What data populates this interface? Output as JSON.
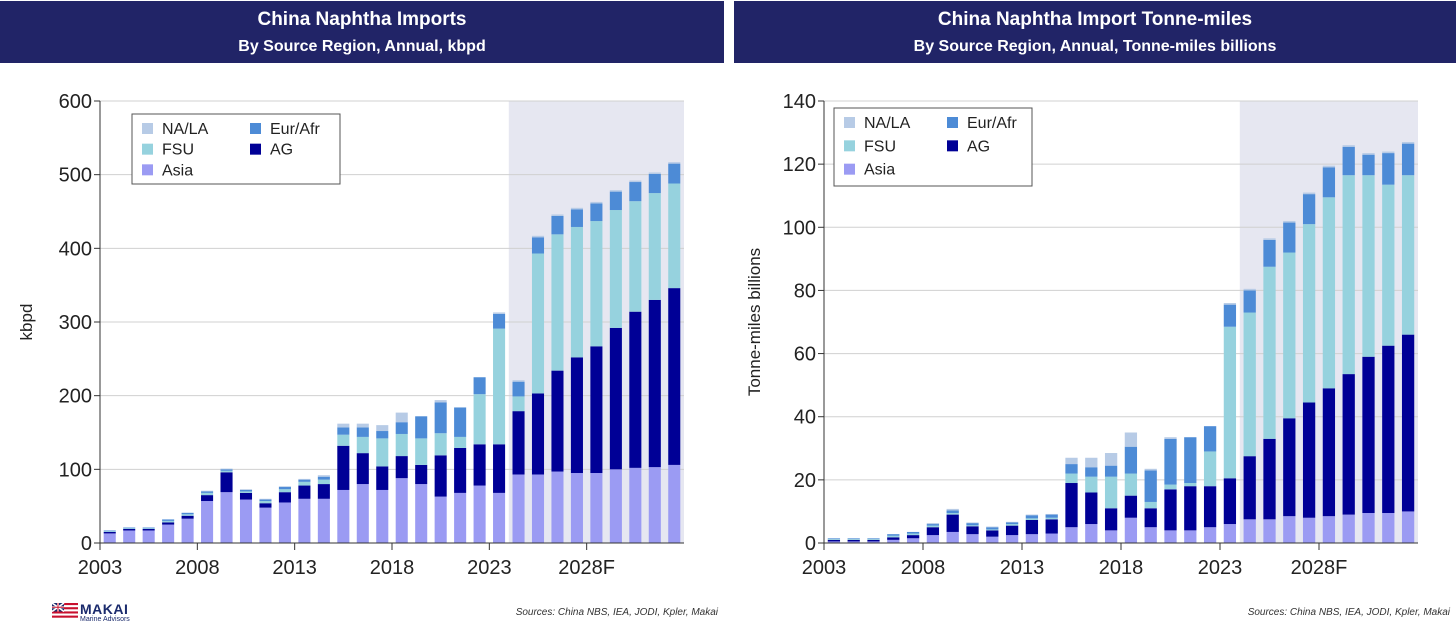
{
  "colors": {
    "banner": "#212467",
    "forecast_shade": "#e6e7f1",
    "Asia": "#9b9bf3",
    "AG": "#000096",
    "FSU": "#96d2de",
    "Eur/Afr": "#4d8bd6",
    "NA/LA": "#b7cbe6"
  },
  "logo": {
    "name": "MAKAI",
    "sub": "Marine Advisors"
  },
  "chart_data": [
    {
      "type": "bar",
      "stacked": true,
      "title": "China Naphtha Imports",
      "subtitle": "By Source Region, Annual, kbpd",
      "ylabel": "kbpd",
      "ylim": [
        0,
        600
      ],
      "yticks": [
        0,
        100,
        200,
        300,
        400,
        500,
        600
      ],
      "x_tick_labels": [
        "2003",
        "2008",
        "2013",
        "2018",
        "2023",
        "2028F"
      ],
      "x": [
        2003,
        2004,
        2005,
        2006,
        2007,
        2008,
        2009,
        2010,
        2011,
        2012,
        2013,
        2014,
        2015,
        2016,
        2017,
        2018,
        2019,
        2020,
        2021,
        2022,
        2023,
        2024,
        2025,
        2026,
        2027,
        2028,
        2029,
        2030,
        2031,
        2032
      ],
      "forecast_start": 2024,
      "grid": true,
      "legend": "top-left",
      "series": [
        {
          "name": "Asia",
          "values": [
            13,
            17,
            17,
            25,
            33,
            57,
            69,
            59,
            48,
            55,
            60,
            60,
            72,
            80,
            72,
            88,
            80,
            63,
            68,
            78,
            68,
            93,
            93,
            97,
            95,
            95,
            100,
            102,
            103,
            106
          ]
        },
        {
          "name": "AG",
          "values": [
            2,
            2,
            2,
            3,
            4,
            8,
            27,
            9,
            6,
            14,
            18,
            20,
            60,
            42,
            32,
            30,
            26,
            56,
            61,
            56,
            66,
            86,
            110,
            137,
            157,
            172,
            192,
            212,
            227,
            240
          ]
        },
        {
          "name": "FSU",
          "values": [
            1,
            1,
            1,
            2,
            2,
            3,
            2,
            2,
            3,
            4,
            5,
            6,
            15,
            22,
            38,
            30,
            36,
            30,
            15,
            68,
            157,
            20,
            190,
            185,
            177,
            170,
            160,
            150,
            145,
            142
          ]
        },
        {
          "name": "Eur/Afr",
          "values": [
            1,
            1,
            1,
            2,
            2,
            2,
            2,
            2,
            2,
            3,
            3,
            4,
            10,
            13,
            10,
            16,
            30,
            42,
            40,
            23,
            20,
            20,
            22,
            25,
            24,
            24,
            25,
            26,
            26,
            27
          ]
        },
        {
          "name": "NA/LA",
          "values": [
            0,
            0,
            0,
            0,
            0,
            1,
            1,
            1,
            1,
            1,
            1,
            2,
            5,
            5,
            8,
            13,
            0,
            3,
            0,
            0,
            2,
            2,
            2,
            2,
            2,
            2,
            2,
            2,
            2,
            2
          ]
        }
      ],
      "source": "Sources: China NBS, IEA, JODI, Kpler, Makai"
    },
    {
      "type": "bar",
      "stacked": true,
      "title": "China Naphtha Import Tonne-miles",
      "subtitle": "By Source Region, Annual, Tonne-miles billions",
      "ylabel": "Tonne-miles billions",
      "ylim": [
        0,
        140
      ],
      "yticks": [
        0,
        20,
        40,
        60,
        80,
        100,
        120,
        140
      ],
      "x_tick_labels": [
        "2003",
        "2008",
        "2013",
        "2018",
        "2023",
        "2028F"
      ],
      "x": [
        2003,
        2004,
        2005,
        2006,
        2007,
        2008,
        2009,
        2010,
        2011,
        2012,
        2013,
        2014,
        2015,
        2016,
        2017,
        2018,
        2019,
        2020,
        2021,
        2022,
        2023,
        2024,
        2025,
        2026,
        2027,
        2028,
        2029,
        2030,
        2031,
        2032
      ],
      "forecast_start": 2024,
      "grid": true,
      "legend": "top-left",
      "series": [
        {
          "name": "Asia",
          "values": [
            0.5,
            0.5,
            0.5,
            1,
            1.5,
            2.5,
            3.5,
            2.8,
            2,
            2.5,
            2.8,
            3,
            5,
            6,
            4,
            8,
            5,
            4,
            4,
            5,
            6,
            7.5,
            7.5,
            8.5,
            8,
            8.5,
            9,
            9.5,
            9.5,
            10
          ]
        },
        {
          "name": "AG",
          "values": [
            0.5,
            0.5,
            0.5,
            0.8,
            1,
            2.5,
            5.5,
            2.5,
            2,
            3,
            4.5,
            4.5,
            14,
            10,
            7,
            7,
            6,
            13,
            14,
            13,
            14.5,
            20,
            25.5,
            31,
            36.5,
            40.5,
            44.5,
            49.5,
            53,
            56
          ]
        },
        {
          "name": "FSU",
          "values": [
            0.3,
            0.3,
            0.3,
            0.5,
            0.5,
            0.5,
            0.5,
            0.3,
            0.3,
            0.5,
            0.5,
            0.5,
            3,
            5,
            10,
            7,
            2,
            1.5,
            1,
            11,
            48,
            45.5,
            54.5,
            52.5,
            56.5,
            60.5,
            63,
            57.5,
            51,
            50.5
          ]
        },
        {
          "name": "Eur/Afr",
          "values": [
            0.2,
            0.2,
            0.2,
            0.5,
            0.5,
            0.5,
            0.8,
            0.7,
            0.7,
            0.5,
            1,
            1,
            3,
            3,
            3.5,
            8.5,
            10,
            14.5,
            14.5,
            8,
            7,
            7,
            8.5,
            9.5,
            9.5,
            9.5,
            9,
            6.5,
            10,
            10
          ]
        },
        {
          "name": "NA/LA",
          "values": [
            0,
            0,
            0,
            0,
            0,
            0.3,
            0.5,
            0.2,
            0.2,
            0.2,
            0.2,
            0.2,
            2,
            3,
            4,
            4.5,
            0.5,
            0.5,
            0,
            0,
            0.5,
            0.5,
            0.5,
            0.5,
            0.5,
            0.5,
            0.5,
            0.5,
            0.5,
            0.5
          ]
        }
      ],
      "source": "Sources: China NBS, IEA, JODI, Kpler, Makai"
    }
  ]
}
